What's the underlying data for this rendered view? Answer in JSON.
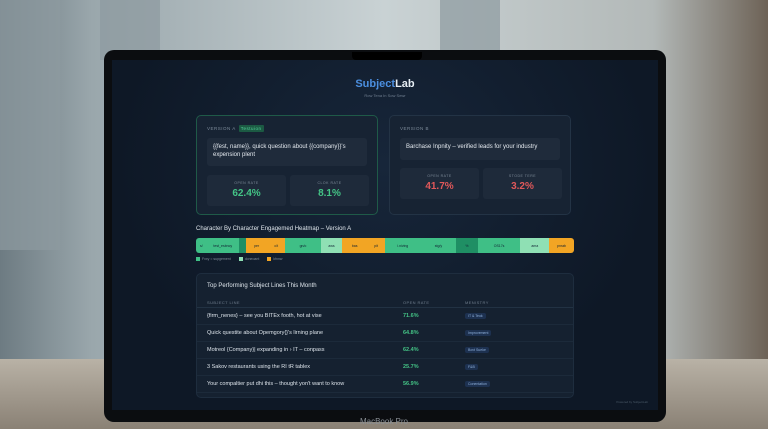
{
  "app": {
    "brand_a": "Subject",
    "brand_b": "Lab",
    "tagline": "Row Tena In Sow Sewr"
  },
  "version_a": {
    "label": "VERSION A",
    "badge": "Testuion",
    "subject": "{{fest, name}}, quick question about {{company}}'s expension plent",
    "metrics": [
      {
        "label": "OPEN RATE",
        "value": "62.4%"
      },
      {
        "label": "CLOK RATE",
        "value": "8.1%"
      }
    ]
  },
  "version_b": {
    "label": "VERSION B",
    "subject": "Barchase Inpnity – verified leads for your industry",
    "metrics": [
      {
        "label": "OPEN RATE",
        "value": "41.7%"
      },
      {
        "label": "STODE TERE",
        "value": "3.2%"
      }
    ]
  },
  "heatmap": {
    "title": "Character By Character Engagemed Heatmap – Version A",
    "segments": [
      {
        "t": "s/",
        "w": 3,
        "c": "#3fbf86"
      },
      {
        "t": "test_esbncy",
        "w": 9,
        "c": "#3fbf86"
      },
      {
        "t": "",
        "w": 2,
        "c": "#1f8f64"
      },
      {
        "t": "per",
        "w": 6,
        "c": "#f2a524"
      },
      {
        "t": "c/t",
        "w": 5,
        "c": "#f2a524"
      },
      {
        "t": "gn/o",
        "w": 10,
        "c": "#3fbf86"
      },
      {
        "t": "aws",
        "w": 6,
        "c": "#8fe0b4"
      },
      {
        "t": "bas",
        "w": 7,
        "c": "#f2a524"
      },
      {
        "t": "pit",
        "w": 5,
        "c": "#f2a524"
      },
      {
        "t": "i.niving",
        "w": 10,
        "c": "#3fbf86"
      },
      {
        "t": "stg/y",
        "w": 10,
        "c": "#3fbf86"
      },
      {
        "t": "%",
        "w": 6,
        "c": "#1f8f64"
      },
      {
        "t": "OS17s",
        "w": 12,
        "c": "#3fbf86"
      },
      {
        "t": "ama",
        "w": 8,
        "c": "#8fe0b4"
      },
      {
        "t": "pnrab",
        "w": 7,
        "c": "#f2a524"
      }
    ],
    "legend": [
      {
        "label": "Fxxy = supgement",
        "color": "#3fbf86"
      },
      {
        "label": "doneoant",
        "color": "#8fe0b4"
      },
      {
        "label": "kfnnw",
        "color": "#f2a524"
      }
    ]
  },
  "top": {
    "title": "Top Performing Subject Lines This Month",
    "headers": [
      "SUBJECT LINE",
      "OPEN RATE",
      "MENISTRY"
    ],
    "rows": [
      [
        "{firm_nenes} – see you BITEx footh, hot at vise",
        "71.6%",
        "IT & Teok"
      ],
      [
        "Quick questite about Opemgory{}'s lirning plane",
        "64.8%",
        "Improvement"
      ],
      [
        "Motreol {Company}| expanding in › IT – conpass",
        "62.4%",
        "Bovt Sueke"
      ],
      [
        "3 Sakov restaurants using the RI tR tablex",
        "25.7%",
        "F&B"
      ],
      [
        "Your compaltier put dhi this – thought yon't want to know",
        "56.9%",
        "Conentation"
      ]
    ]
  },
  "footer": "Powered by SubjectLab",
  "device": "MacBook Pro"
}
